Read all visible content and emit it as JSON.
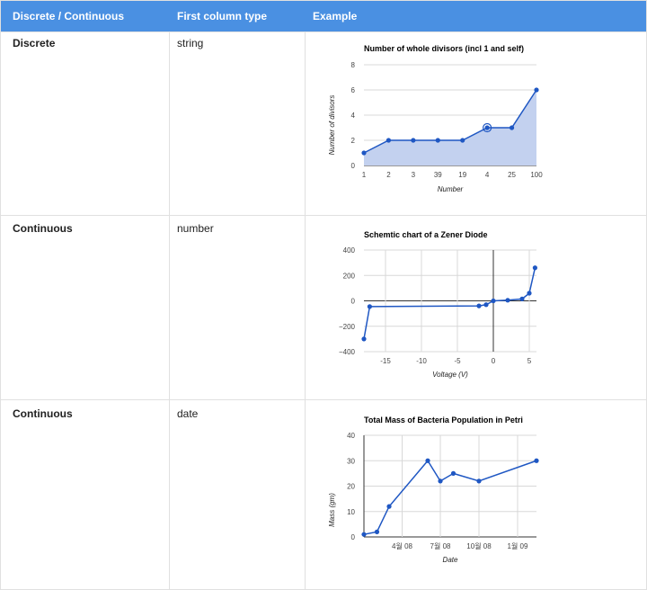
{
  "header": {
    "col1": "Discrete / Continuous",
    "col2": "First column type",
    "col3": "Example"
  },
  "rows": [
    {
      "kind": "Discrete",
      "type": "string"
    },
    {
      "kind": "Continuous",
      "type": "number"
    },
    {
      "kind": "Continuous",
      "type": "date"
    }
  ],
  "colors": {
    "header_bg": "#4a90e2",
    "series": "#1f57c3",
    "area_fill": "#c3d1ef",
    "grid": "#d8d8d8"
  },
  "charts": [
    {
      "type": "area",
      "title": "Number of whole divisors (incl 1 and self)",
      "xlabel": "Number",
      "ylabel": "Number of divisors",
      "categories": [
        "1",
        "2",
        "3",
        "39",
        "19",
        "4",
        "25",
        "100"
      ],
      "values": [
        1,
        2,
        2,
        2,
        2,
        3,
        3,
        6
      ],
      "ylim": [
        0,
        8
      ],
      "yticks": [
        "0",
        "2",
        "4",
        "6",
        "8"
      ],
      "highlighted_point": "4"
    },
    {
      "type": "line",
      "title": "Schemtic chart of a Zener Diode",
      "xlabel": "Voltage (V)",
      "ylabel": "",
      "x": [
        -18,
        -17.2,
        -2,
        -1,
        0,
        2,
        4,
        5,
        5.8
      ],
      "y": [
        -300,
        -45,
        -40,
        -30,
        0,
        5,
        15,
        60,
        260
      ],
      "xlim": [
        -18,
        6
      ],
      "ylim": [
        -400,
        400
      ],
      "xticks": [
        "-15",
        "-10",
        "-5",
        "0",
        "5"
      ],
      "yticks": [
        "400",
        "200",
        "0",
        "−200",
        "−400"
      ]
    },
    {
      "type": "line",
      "title": "Total Mass of Bacteria Population in Petri",
      "xlabel": "Date",
      "ylabel": "Mass (gm)",
      "x": [
        "2008-01-01",
        "2008-02-01",
        "2008-03-01",
        "2008-06-01",
        "2008-07-01",
        "2008-08-01",
        "2008-10-01",
        "2009-02-15"
      ],
      "y": [
        1,
        2,
        12,
        30,
        22,
        25,
        22,
        30
      ],
      "xlim": [
        "2008-01-01",
        "2009-02-15"
      ],
      "ylim": [
        0,
        40
      ],
      "xticks": [
        "4월 08",
        "7월 08",
        "10월 08",
        "1월 09"
      ],
      "xtick_dates": [
        "2008-04-01",
        "2008-07-01",
        "2008-10-01",
        "2009-01-01"
      ],
      "yticks": [
        "0",
        "10",
        "20",
        "30",
        "40"
      ]
    }
  ]
}
